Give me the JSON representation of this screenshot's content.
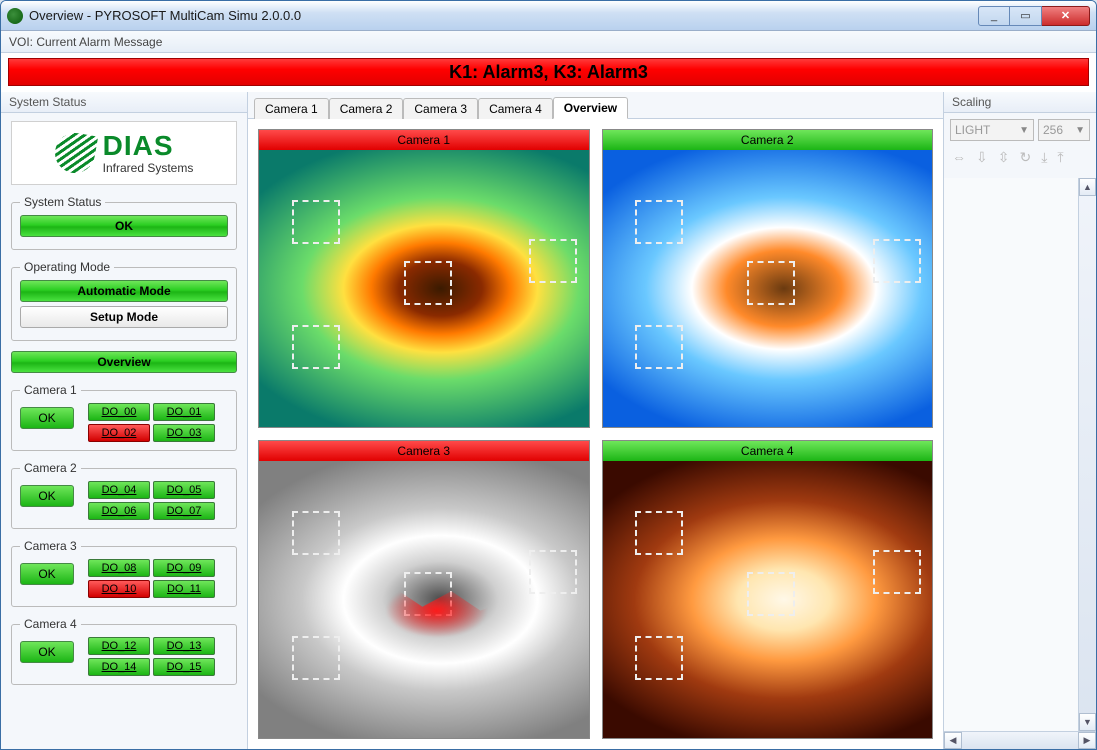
{
  "window": {
    "title": "Overview - PYROSOFT MultiCam Simu 2.0.0.0",
    "min_tip": "_",
    "max_tip": "▭",
    "close_tip": "✕"
  },
  "toolbar": {
    "voi_label": "VOI: Current Alarm Message"
  },
  "alarm_banner": {
    "text": "K1: Alarm3, K3: Alarm3",
    "bg": "#ff0000",
    "fontsize": 18
  },
  "sidebar": {
    "title": "System Status",
    "logo": {
      "brand": "DIAS",
      "sub": "Infrared Systems",
      "color": "#0a8a2a"
    },
    "system_status": {
      "legend": "System Status",
      "value": "OK",
      "state": "green"
    },
    "operating_mode": {
      "legend": "Operating Mode",
      "auto": "Automatic Mode",
      "setup": "Setup Mode",
      "active": "auto"
    },
    "overview_btn": "Overview",
    "cameras": [
      {
        "legend": "Camera 1",
        "status": "OK",
        "outputs": [
          {
            "name": "DO_00",
            "alarm": false
          },
          {
            "name": "DO_01",
            "alarm": false
          },
          {
            "name": "DO_02",
            "alarm": true
          },
          {
            "name": "DO_03",
            "alarm": false
          }
        ]
      },
      {
        "legend": "Camera 2",
        "status": "OK",
        "outputs": [
          {
            "name": "DO_04",
            "alarm": false
          },
          {
            "name": "DO_05",
            "alarm": false
          },
          {
            "name": "DO_06",
            "alarm": false
          },
          {
            "name": "DO_07",
            "alarm": false
          }
        ]
      },
      {
        "legend": "Camera 3",
        "status": "OK",
        "outputs": [
          {
            "name": "DO_08",
            "alarm": false
          },
          {
            "name": "DO_09",
            "alarm": false
          },
          {
            "name": "DO_10",
            "alarm": true
          },
          {
            "name": "DO_11",
            "alarm": false
          }
        ]
      },
      {
        "legend": "Camera 4",
        "status": "OK",
        "outputs": [
          {
            "name": "DO_12",
            "alarm": false
          },
          {
            "name": "DO_13",
            "alarm": false
          },
          {
            "name": "DO_14",
            "alarm": false
          },
          {
            "name": "DO_15",
            "alarm": false
          }
        ]
      }
    ]
  },
  "tabs": {
    "items": [
      "Camera 1",
      "Camera 2",
      "Camera 3",
      "Camera 4",
      "Overview"
    ],
    "active_index": 4
  },
  "views": [
    {
      "title": "Camera 1",
      "alarm": true,
      "palette": "thermal1",
      "colors": {
        "header": "#e10000"
      },
      "rois": [
        {
          "l": 10,
          "t": 18
        },
        {
          "l": 10,
          "t": 63
        },
        {
          "l": 44,
          "t": 40
        },
        {
          "l": 82,
          "t": 32
        }
      ]
    },
    {
      "title": "Camera 2",
      "alarm": false,
      "palette": "thermal2",
      "colors": {
        "header": "#1cb515"
      },
      "rois": [
        {
          "l": 10,
          "t": 18
        },
        {
          "l": 10,
          "t": 63
        },
        {
          "l": 44,
          "t": 40
        },
        {
          "l": 82,
          "t": 32
        }
      ]
    },
    {
      "title": "Camera 3",
      "alarm": true,
      "palette": "thermal3",
      "colors": {
        "header": "#e10000"
      },
      "rois": [
        {
          "l": 10,
          "t": 18
        },
        {
          "l": 10,
          "t": 63
        },
        {
          "l": 44,
          "t": 40
        },
        {
          "l": 82,
          "t": 32
        }
      ]
    },
    {
      "title": "Camera 4",
      "alarm": false,
      "palette": "thermal4",
      "colors": {
        "header": "#1cb515"
      },
      "rois": [
        {
          "l": 10,
          "t": 18
        },
        {
          "l": 10,
          "t": 63
        },
        {
          "l": 44,
          "t": 40
        },
        {
          "l": 82,
          "t": 32
        }
      ]
    }
  ],
  "scaling": {
    "title": "Scaling",
    "palette_sel": "LIGHT",
    "levels_sel": "256",
    "icons": [
      "range-icon",
      "down-arrow-icon",
      "up-down-icon",
      "refresh-icon",
      "down2-icon",
      "up2-icon"
    ]
  },
  "style": {
    "green": "#1cb515",
    "red": "#e10000",
    "panel_bg": "#f4f7fb"
  }
}
